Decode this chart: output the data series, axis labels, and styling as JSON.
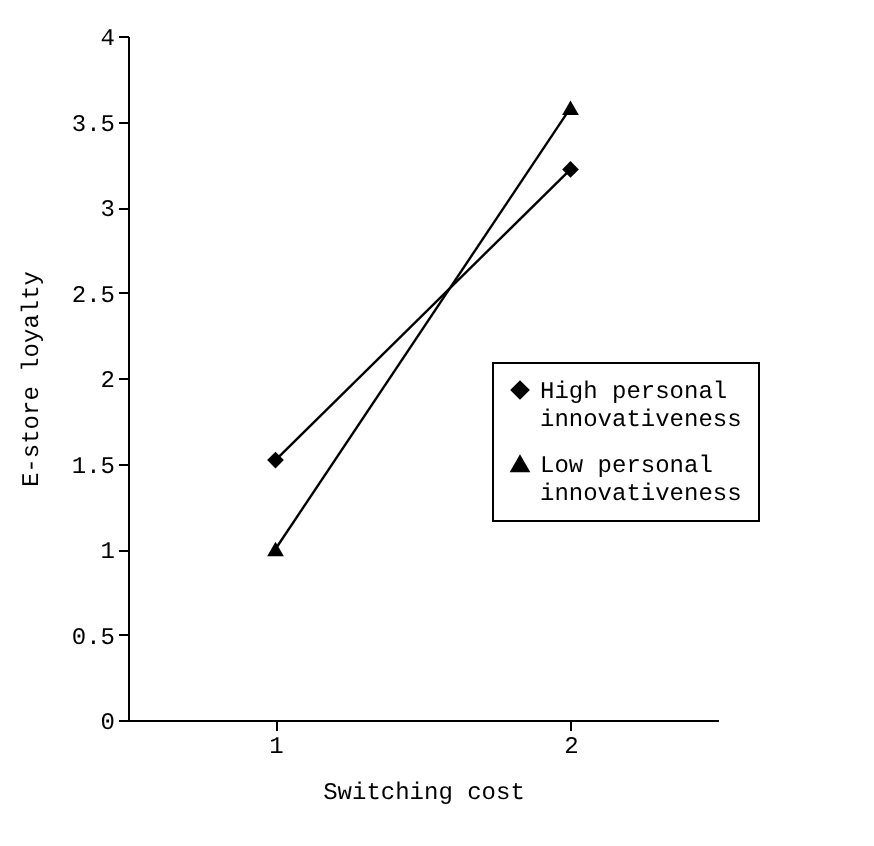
{
  "chart_data": {
    "type": "line",
    "xlabel": "Switching cost",
    "ylabel": "E-store loyalty",
    "categories": [
      "1",
      "2"
    ],
    "ylim": [
      0,
      4
    ],
    "yticks": [
      0,
      0.5,
      1,
      1.5,
      2,
      2.5,
      3,
      3.5,
      4
    ],
    "grid": false,
    "legend": "right",
    "line_style": "solid",
    "series": [
      {
        "name": "High personal innovativeness",
        "color": "#000000",
        "marker": "diamond",
        "values": [
          1.52,
          3.22
        ]
      },
      {
        "name": "Low personal innovativeness",
        "color": "#000000",
        "marker": "triangle",
        "values": [
          1.0,
          3.58
        ]
      }
    ]
  }
}
